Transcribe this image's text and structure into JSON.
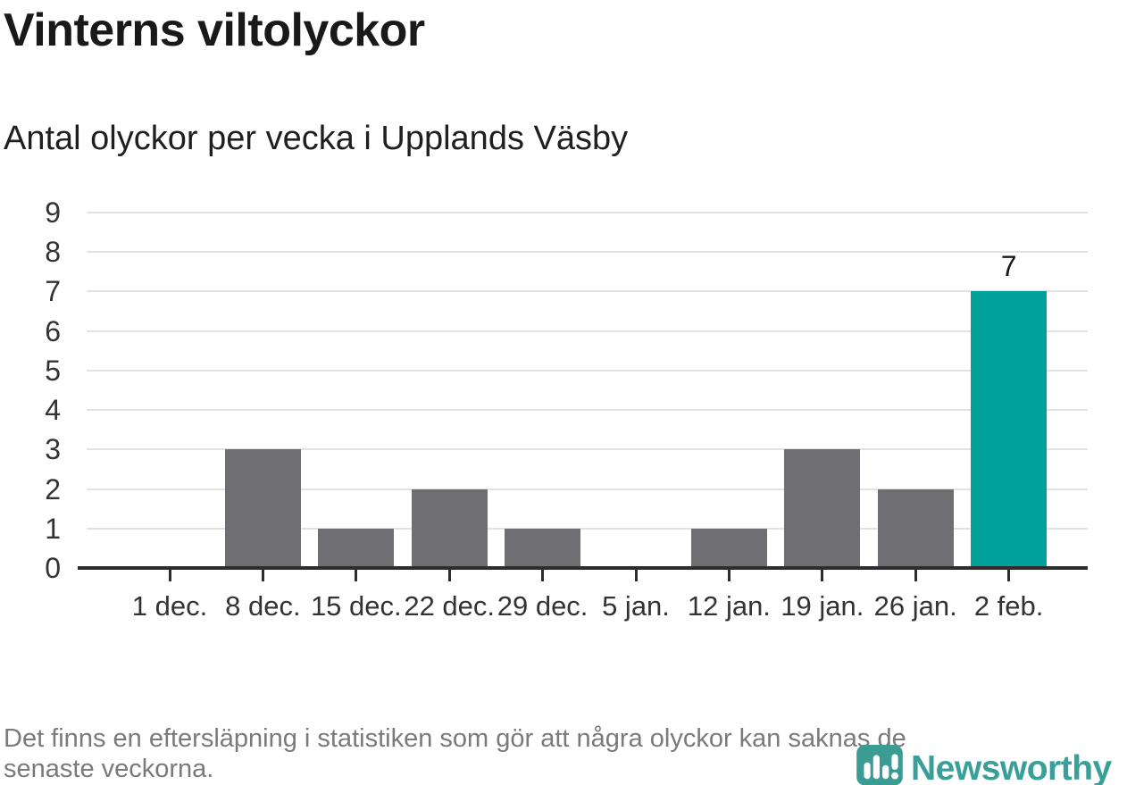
{
  "header": {
    "title": "Vinterns viltolyckor",
    "subtitle": "Antal olyckor per vecka i Upplands Väsby"
  },
  "chart_data": {
    "type": "bar",
    "title": "Vinterns viltolyckor",
    "subtitle": "Antal olyckor per vecka i Upplands Väsby",
    "categories": [
      "1 dec.",
      "8 dec.",
      "15 dec.",
      "22 dec.",
      "29 dec.",
      "5 jan.",
      "12 jan.",
      "19 jan.",
      "26 jan.",
      "2 feb."
    ],
    "values": [
      0,
      3,
      1,
      2,
      1,
      0,
      1,
      3,
      2,
      7
    ],
    "xlabel": "",
    "ylabel": "",
    "ylim": [
      0,
      9
    ],
    "yticks": [
      0,
      1,
      2,
      3,
      4,
      5,
      6,
      7,
      8,
      9
    ],
    "grid": true,
    "legend": false,
    "bar_color": "#6e6e73",
    "highlight_color": "#00a09b",
    "highlight_index": 9,
    "annotation": {
      "index": 9,
      "text": "7"
    },
    "grid_color": "#e2e2e2",
    "axis_color": "#2d2d2d",
    "tick_label_color": "#333333"
  },
  "footer": {
    "line1": "Det finns en eftersläpning i statistiken som gör att några olyckor kan saknas de",
    "line2": "senaste veckorna."
  },
  "logo": {
    "text": "Newsworthy",
    "icon": "newsworthy-pin-barchart-icon",
    "text_color": "#38a099",
    "mark_color": "#3b9c94"
  }
}
